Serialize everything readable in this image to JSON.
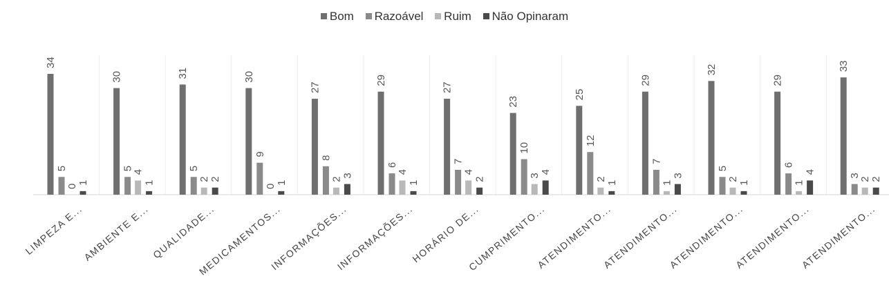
{
  "chart_data": {
    "type": "bar",
    "title": "",
    "xlabel": "",
    "ylabel": "",
    "ylim": [
      0,
      34
    ],
    "grid": false,
    "legend_position": "top-center",
    "categories": [
      "LIMPEZA E...",
      "AMBIENTE E...",
      "QUALIDADE...",
      "MEDICAMENTOS...",
      "INFORMAÇÕES...",
      "INFORMAÇÕES...",
      "HORÁRIO DE...",
      "CUMPRIMENTO...",
      "ATENDIMENTO...",
      "ATENDIMENTO...",
      "ATENDIMENTO...",
      "ATENDIMENTO...",
      "ATENDIMENTO..."
    ],
    "series": [
      {
        "name": "Bom",
        "color": "#6f6f6f",
        "values": [
          34,
          30,
          31,
          30,
          27,
          29,
          27,
          23,
          25,
          29,
          32,
          29,
          33
        ]
      },
      {
        "name": "Razoável",
        "color": "#8a8a8a",
        "values": [
          5,
          5,
          5,
          9,
          8,
          6,
          7,
          10,
          12,
          7,
          5,
          6,
          3
        ]
      },
      {
        "name": "Ruim",
        "color": "#b8b8b8",
        "values": [
          0,
          4,
          2,
          0,
          2,
          4,
          4,
          3,
          2,
          1,
          2,
          1,
          2
        ]
      },
      {
        "name": "Não Opinaram",
        "color": "#4a4a4a",
        "values": [
          1,
          1,
          2,
          1,
          3,
          1,
          2,
          4,
          1,
          3,
          1,
          4,
          2
        ]
      }
    ]
  }
}
